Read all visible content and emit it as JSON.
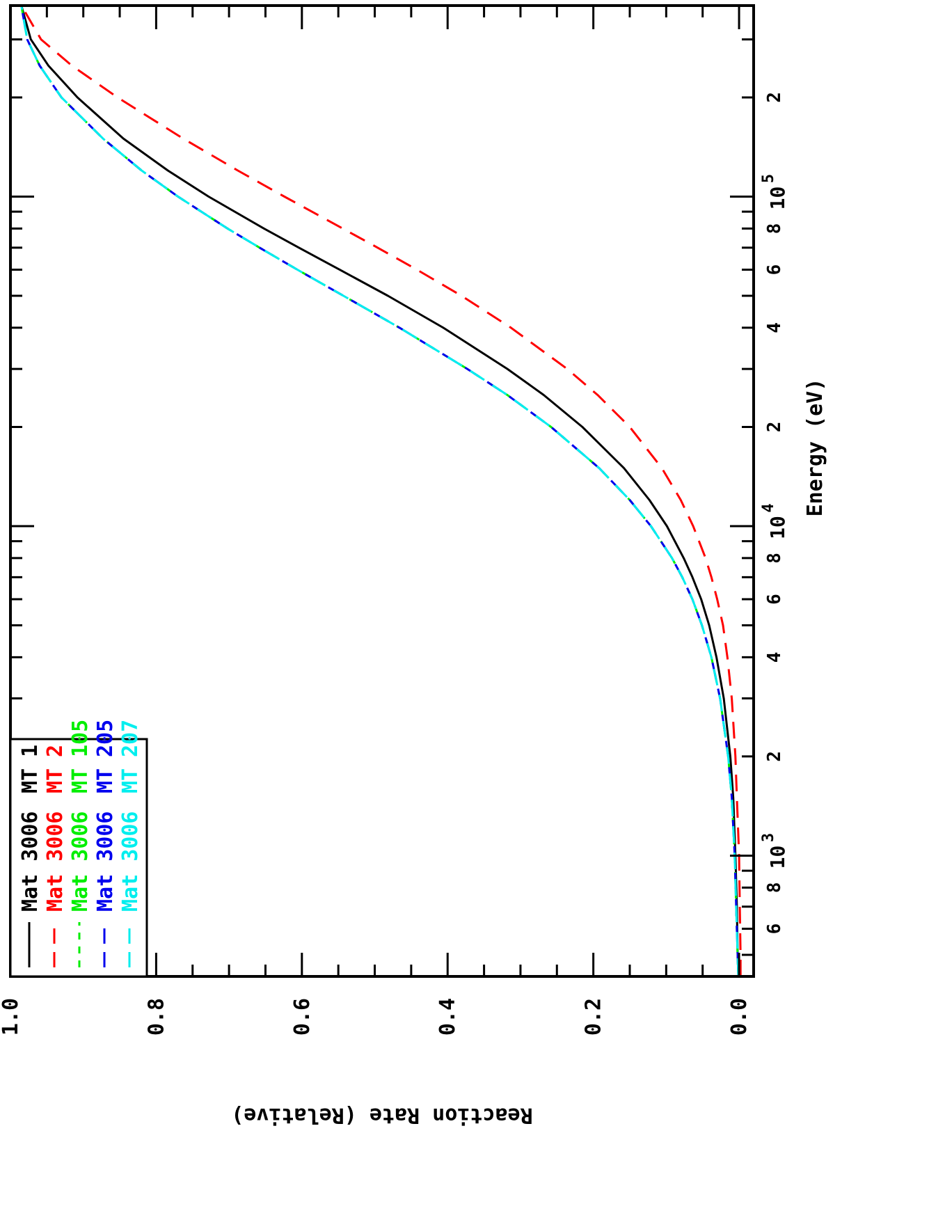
{
  "chart_data": {
    "type": "line",
    "orientation": "rotated-90-clockwise",
    "title": "",
    "xlabel": "Energy (eV)",
    "ylabel": "Reaction Rate (Relative)",
    "x_scale": "log",
    "xlim": [
      430,
      380000
    ],
    "ylim": [
      -0.02,
      1.0
    ],
    "x_major_ticks": [
      {
        "value": 1000,
        "base": "10",
        "exp": "3"
      },
      {
        "value": 10000,
        "base": "10",
        "exp": "4"
      },
      {
        "value": 100000,
        "base": "10",
        "exp": "5"
      }
    ],
    "x_minor_ticks": [
      {
        "value": 500,
        "label": ""
      },
      {
        "value": 600,
        "label": "6"
      },
      {
        "value": 700,
        "label": ""
      },
      {
        "value": 800,
        "label": "8"
      },
      {
        "value": 900,
        "label": ""
      },
      {
        "value": 2000,
        "label": "2"
      },
      {
        "value": 3000,
        "label": ""
      },
      {
        "value": 4000,
        "label": "4"
      },
      {
        "value": 5000,
        "label": ""
      },
      {
        "value": 6000,
        "label": "6"
      },
      {
        "value": 7000,
        "label": ""
      },
      {
        "value": 8000,
        "label": "8"
      },
      {
        "value": 9000,
        "label": ""
      },
      {
        "value": 20000,
        "label": "2"
      },
      {
        "value": 30000,
        "label": ""
      },
      {
        "value": 40000,
        "label": "4"
      },
      {
        "value": 50000,
        "label": ""
      },
      {
        "value": 60000,
        "label": "6"
      },
      {
        "value": 70000,
        "label": ""
      },
      {
        "value": 80000,
        "label": "8"
      },
      {
        "value": 90000,
        "label": ""
      },
      {
        "value": 200000,
        "label": "2"
      },
      {
        "value": 300000,
        "label": ""
      }
    ],
    "y_ticks": [
      {
        "value": 0.0,
        "label": "0.0"
      },
      {
        "value": 0.2,
        "label": "0.2"
      },
      {
        "value": 0.4,
        "label": "0.4"
      },
      {
        "value": 0.6,
        "label": "0.6"
      },
      {
        "value": 0.8,
        "label": "0.8"
      },
      {
        "value": 1.0,
        "label": "1.0"
      }
    ],
    "y_minor_step": 0.05,
    "grid": false,
    "legend_position": "top-left",
    "series": [
      {
        "name": "Mat 3006  MT 1",
        "mat": "Mat 3006",
        "mt": "MT",
        "mt_number": "1",
        "color": "#000000",
        "dash": "solid",
        "x": [
          430,
          500,
          700,
          1000,
          1500,
          2000,
          3000,
          4000,
          5000,
          6000,
          7000,
          8000,
          10000,
          12000,
          15000,
          20000,
          25000,
          30000,
          40000,
          50000,
          60000,
          70000,
          80000,
          100000,
          120000,
          150000,
          200000,
          250000,
          300000,
          380000
        ],
        "y": [
          0.001,
          0.002,
          0.003,
          0.005,
          0.008,
          0.012,
          0.021,
          0.031,
          0.041,
          0.052,
          0.064,
          0.076,
          0.099,
          0.123,
          0.158,
          0.215,
          0.268,
          0.318,
          0.406,
          0.482,
          0.548,
          0.604,
          0.652,
          0.728,
          0.784,
          0.845,
          0.908,
          0.948,
          0.972,
          0.985
        ]
      },
      {
        "name": "Mat 3006  MT 2",
        "mat": "Mat 3006",
        "mt": "MT",
        "mt_number": "2",
        "color": "#ff0000",
        "dash": "long-dash",
        "x": [
          430,
          500,
          700,
          1000,
          1500,
          2000,
          3000,
          4000,
          5000,
          6000,
          7000,
          8000,
          10000,
          12000,
          15000,
          20000,
          25000,
          30000,
          40000,
          50000,
          60000,
          70000,
          80000,
          100000,
          120000,
          150000,
          200000,
          250000,
          300000,
          380000
        ],
        "y": [
          -0.002,
          -0.002,
          -0.001,
          0.0,
          0.003,
          0.005,
          0.01,
          0.016,
          0.022,
          0.03,
          0.038,
          0.046,
          0.063,
          0.08,
          0.106,
          0.15,
          0.194,
          0.236,
          0.313,
          0.381,
          0.442,
          0.496,
          0.544,
          0.624,
          0.688,
          0.763,
          0.853,
          0.916,
          0.958,
          0.985
        ]
      },
      {
        "name": "Mat 3006  MT 105",
        "mat": "Mat 3006",
        "mt": "MT",
        "mt_number": "105",
        "color": "#00ee00",
        "dash": "short-dash",
        "x": [
          430,
          500,
          700,
          1000,
          1500,
          2000,
          3000,
          4000,
          5000,
          6000,
          7000,
          8000,
          10000,
          12000,
          15000,
          20000,
          25000,
          30000,
          40000,
          50000,
          60000,
          70000,
          80000,
          100000,
          120000,
          150000,
          200000,
          250000,
          300000,
          380000
        ],
        "y": [
          0.001,
          0.002,
          0.004,
          0.006,
          0.01,
          0.015,
          0.026,
          0.038,
          0.051,
          0.064,
          0.078,
          0.092,
          0.121,
          0.15,
          0.192,
          0.258,
          0.318,
          0.373,
          0.466,
          0.543,
          0.606,
          0.658,
          0.702,
          0.77,
          0.82,
          0.873,
          0.93,
          0.96,
          0.977,
          0.985
        ]
      },
      {
        "name": "Mat 3006  MT 205",
        "mat": "Mat 3006",
        "mt": "MT",
        "mt_number": "205",
        "color": "#0000ee",
        "dash": "long-dash",
        "x": [
          430,
          500,
          700,
          1000,
          1500,
          2000,
          3000,
          4000,
          5000,
          6000,
          7000,
          8000,
          10000,
          12000,
          15000,
          20000,
          25000,
          30000,
          40000,
          50000,
          60000,
          70000,
          80000,
          100000,
          120000,
          150000,
          200000,
          250000,
          300000,
          380000
        ],
        "y": [
          0.001,
          0.002,
          0.004,
          0.006,
          0.01,
          0.015,
          0.026,
          0.038,
          0.051,
          0.064,
          0.078,
          0.092,
          0.121,
          0.15,
          0.192,
          0.258,
          0.318,
          0.373,
          0.466,
          0.543,
          0.606,
          0.658,
          0.702,
          0.77,
          0.82,
          0.873,
          0.93,
          0.96,
          0.977,
          0.985
        ]
      },
      {
        "name": "Mat 3006  MT 207",
        "mat": "Mat 3006",
        "mt": "MT",
        "mt_number": "207",
        "color": "#00eeee",
        "dash": "long-dash",
        "x": [
          430,
          500,
          700,
          1000,
          1500,
          2000,
          3000,
          4000,
          5000,
          6000,
          7000,
          8000,
          10000,
          12000,
          15000,
          20000,
          25000,
          30000,
          40000,
          50000,
          60000,
          70000,
          80000,
          100000,
          120000,
          150000,
          200000,
          250000,
          300000,
          380000
        ],
        "y": [
          0.001,
          0.002,
          0.004,
          0.006,
          0.01,
          0.015,
          0.026,
          0.038,
          0.051,
          0.064,
          0.078,
          0.092,
          0.121,
          0.15,
          0.192,
          0.258,
          0.318,
          0.373,
          0.466,
          0.543,
          0.606,
          0.658,
          0.702,
          0.77,
          0.82,
          0.873,
          0.93,
          0.96,
          0.977,
          0.985
        ]
      }
    ]
  }
}
